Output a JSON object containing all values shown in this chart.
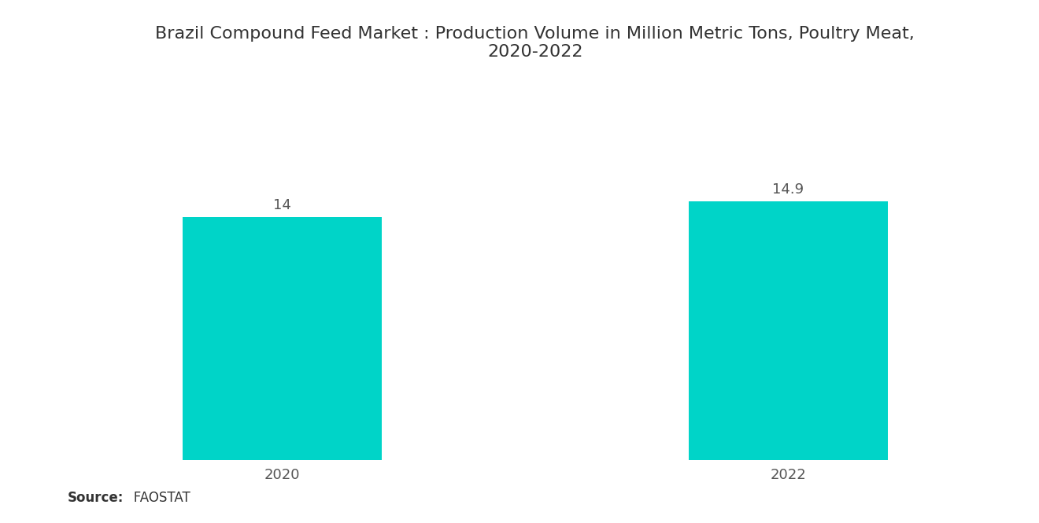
{
  "title": "Brazil Compound Feed Market : Production Volume in Million Metric Tons, Poultry Meat,\n2020-2022",
  "categories": [
    "2020",
    "2022"
  ],
  "values": [
    14,
    14.9
  ],
  "bar_color": "#00D4C8",
  "value_labels": [
    "14",
    "14.9"
  ],
  "source_bold": "Source:",
  "source_rest": "   FAOSTAT",
  "background_color": "#ffffff",
  "title_fontsize": 16,
  "tick_fontsize": 13,
  "value_fontsize": 13,
  "source_fontsize": 12,
  "ylim": [
    0,
    22
  ],
  "bar_width": 0.55,
  "x_positions": [
    0,
    1.4
  ]
}
